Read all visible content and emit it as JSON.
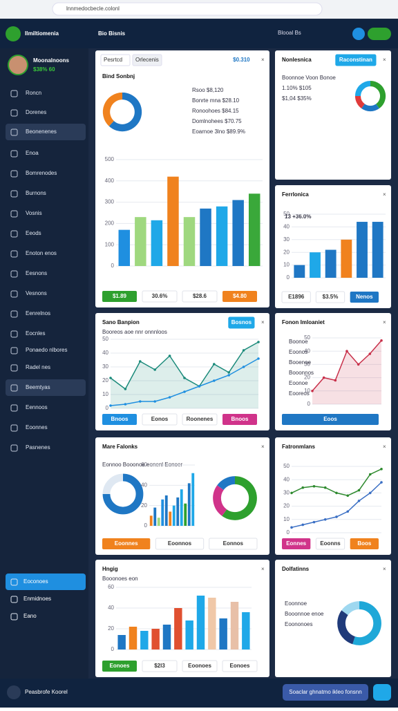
{
  "browser": {
    "url": "lnnmedocbecle.colonl"
  },
  "topbar": {
    "brand": "Ilmiltiomenia",
    "title": "Bio Bisnis",
    "chip": "Blooal Bs"
  },
  "sidebar": {
    "user": "Moonalnoons",
    "user_stat": "$38% 60",
    "items": [
      "Roncn",
      "Dorenes",
      "Beonenenes",
      "Enoa",
      "Bomrenodes",
      "Burnons",
      "Vosnis",
      "Eeods",
      "Enoton enos",
      "Eesnons",
      "Vesnons",
      "Eenrelnos",
      "Eocnles",
      "Ponaedo nlbores",
      "Radel nes",
      "Beemtyas",
      "Eennoos",
      "Eoonnes",
      "Pasnenes"
    ],
    "footer_items": [
      "Eoconoes",
      "Enmidnoes",
      "Eano"
    ]
  },
  "close_icon": "×",
  "cards": [
    {
      "tabs": [
        "Pesrtcd",
        "Orlecenis"
      ],
      "title": "Bind Sonbnj",
      "badge": "$0.310",
      "lines": [
        "Rsoo  $8,120",
        "Bonrte mna  $28.10",
        "Ronoohoes  $84.15",
        "Domlnohees  $70.75",
        "Eoarnoe 3lno  $89.9%"
      ],
      "stats": [
        {
          "label": "$1.89",
          "color": "#2ea02e"
        },
        {
          "label": "30.6%",
          "color": "#ffffff"
        },
        {
          "label": "$28.6",
          "color": "#ffffff"
        },
        {
          "label": "$4.80",
          "color": "#f0821e"
        }
      ],
      "charts": [
        {
          "type": "donut",
          "values": [
            62,
            38
          ],
          "colors": [
            "#1f77c4",
            "#f0821e"
          ]
        },
        {
          "type": "bar",
          "values": [
            170,
            230,
            215,
            420,
            230,
            270,
            280,
            310,
            340
          ],
          "colors": [
            "#1f8fe0",
            "#9fd87f",
            "#1fa8e8",
            "#f0821e",
            "#9fd87f",
            "#1f77c4",
            "#1fa8e8",
            "#1f77c4",
            "#3aa83a"
          ],
          "ylim": [
            0,
            500
          ],
          "yticks": [
            0,
            100,
            200,
            300,
            400,
            500
          ]
        }
      ]
    },
    {
      "title": "Nonlesnica",
      "badge": "Raconstinan",
      "lines": [
        "Boonnoe  Voon Bonoe",
        "1.10%  $105",
        "$1,04  $35%"
      ],
      "stats": [],
      "charts": [
        {
          "type": "donut",
          "values": [
            40,
            20,
            15,
            25
          ],
          "colors": [
            "#2ea02e",
            "#1f77c4",
            "#e03a3a",
            "#1fa8e8"
          ]
        }
      ]
    },
    {
      "title": "Ferrlonica",
      "lines": [
        "13 +36.0%"
      ],
      "stats": [
        {
          "label": "E1896",
          "color": "#ffffff"
        },
        {
          "label": "$3.5%",
          "color": "#ffffff"
        },
        {
          "label": "Nenos",
          "color": "#1f77c4"
        }
      ],
      "charts": [
        {
          "type": "bar",
          "values": [
            10,
            20,
            22,
            30,
            44,
            44
          ],
          "colors": [
            "#1f77c4",
            "#1fa8e8",
            "#1f77c4",
            "#f0821e",
            "#1f77c4",
            "#1f77c4"
          ],
          "ylim": [
            0,
            50
          ],
          "yticks": [
            0,
            10,
            20,
            30,
            40,
            50
          ]
        }
      ]
    },
    {
      "title": "Sano Banpion",
      "badge": "Bosnos",
      "lines": [
        "Booreos aoe nnr onnnloos"
      ],
      "stats": [
        {
          "label": "Bnoos",
          "color": "#1f8fe0"
        },
        {
          "label": "Eonos",
          "color": "#ffffff"
        },
        {
          "label": "Roonenes",
          "color": "#ffffff"
        },
        {
          "label": "Bnoos",
          "color": "#d0338a"
        }
      ],
      "charts": [
        {
          "type": "line",
          "area": true,
          "series": [
            {
              "color": "#1a8a7a",
              "values": [
                22,
                14,
                34,
                28,
                38,
                22,
                16,
                32,
                26,
                42,
                48
              ]
            },
            {
              "color": "#1f8fe0",
              "values": [
                2,
                3,
                5,
                5,
                8,
                12,
                16,
                20,
                24,
                30,
                36
              ]
            }
          ],
          "ylim": [
            0,
            50
          ],
          "yticks": [
            0,
            10,
            20,
            30,
            40,
            50
          ]
        }
      ]
    },
    {
      "title": "Fonon Imloaniet",
      "lines": [
        "Boonoe",
        "Eoonos",
        "Booenoe",
        "Booonnos",
        "Eoonoe",
        "Eooreos"
      ],
      "stats": [
        {
          "label": "Eoos",
          "color": "#1f77c4"
        }
      ],
      "charts": [
        {
          "type": "line",
          "area": true,
          "series": [
            {
              "color": "#c8304a",
              "values": [
                10,
                20,
                18,
                40,
                30,
                38,
                48
              ]
            }
          ],
          "ylim": [
            0,
            50
          ],
          "yticks": [
            0,
            10,
            20,
            30,
            40,
            50
          ]
        }
      ]
    },
    {
      "title": "Mare Falonks",
      "lines": [
        "Eonnoo Booonoe eonenl Eonoer"
      ],
      "stats": [
        {
          "label": "Eoonnes",
          "color": "#f0821e"
        },
        {
          "label": "Eoonnos",
          "color": "#ffffff"
        },
        {
          "label": "Eonnos",
          "color": "#ffffff"
        }
      ],
      "charts": [
        {
          "type": "donut",
          "values": [
            75,
            25
          ],
          "colors": [
            "#1f77c4",
            "#dfe8f2"
          ]
        },
        {
          "type": "bar",
          "values": [
            10,
            18,
            8,
            26,
            30,
            14,
            20,
            28,
            36,
            22,
            42,
            52
          ],
          "colors": [
            "#f0821e",
            "#1f77c4",
            "#9fd87f",
            "#1f8fe0",
            "#1f77c4",
            "#f0821e",
            "#1fa8e8",
            "#1f77c4",
            "#1fa8e8",
            "#2ea02e",
            "#1f77c4",
            "#1fa8e8"
          ],
          "ylim": [
            0,
            60
          ],
          "yticks": [
            0,
            20,
            40,
            60
          ]
        },
        {
          "type": "donut",
          "values": [
            60,
            25,
            15
          ],
          "colors": [
            "#2ea02e",
            "#d0338a",
            "#1f77c4"
          ]
        }
      ]
    },
    {
      "title": "Fatronmlans",
      "lines": [],
      "stats": [
        {
          "label": "Eonnes",
          "color": "#d0338a"
        },
        {
          "label": "Eoonns",
          "color": "#ffffff"
        },
        {
          "label": "Boos",
          "color": "#f0821e"
        }
      ],
      "charts": [
        {
          "type": "line",
          "area": false,
          "series": [
            {
              "color": "#2e8a2e",
              "values": [
                30,
                34,
                35,
                34,
                30,
                28,
                32,
                44,
                48
              ]
            },
            {
              "color": "#3a6fc4",
              "values": [
                4,
                6,
                8,
                10,
                12,
                16,
                24,
                30,
                38
              ]
            }
          ],
          "ylim": [
            0,
            50
          ],
          "yticks": [
            0,
            10,
            20,
            30,
            40,
            50
          ]
        }
      ]
    },
    {
      "title": "Hngig",
      "lines": [
        "Booonoes eon"
      ],
      "stats": [
        {
          "label": "Eonoes",
          "color": "#2ea02e"
        },
        {
          "label": "$2l3",
          "color": "#ffffff"
        },
        {
          "label": "Eoonoes",
          "color": "#ffffff"
        },
        {
          "label": "Eonoes",
          "color": "#ffffff"
        }
      ],
      "charts": [
        {
          "type": "bar",
          "values": [
            14,
            22,
            18,
            20,
            24,
            40,
            28,
            52,
            50,
            30,
            46,
            36
          ],
          "colors": [
            "#1f77c4",
            "#f0821e",
            "#1fa8e8",
            "#e05030",
            "#1f77c4",
            "#e05030",
            "#1fa8e8",
            "#1fa8e8",
            "#f0c8a8",
            "#1f77c4",
            "#e8c0a8",
            "#1fa8e8"
          ],
          "ylim": [
            0,
            60
          ],
          "yticks": [
            0,
            20,
            40,
            60
          ]
        }
      ]
    },
    {
      "title": "Dolfatinns",
      "lines": [
        "Eoonnoe",
        "Booonnoe enoe",
        "Eoononoes"
      ],
      "stats": [],
      "charts": [
        {
          "type": "donut",
          "values": [
            55,
            30,
            15
          ],
          "colors": [
            "#1fa8d8",
            "#1f3a7a",
            "#9fd8f0"
          ]
        }
      ]
    }
  ],
  "bottom_bar": {
    "left": "Peasbrofe Koorel",
    "button": "Soaclar ghnatmo ikleo fonsnn"
  }
}
